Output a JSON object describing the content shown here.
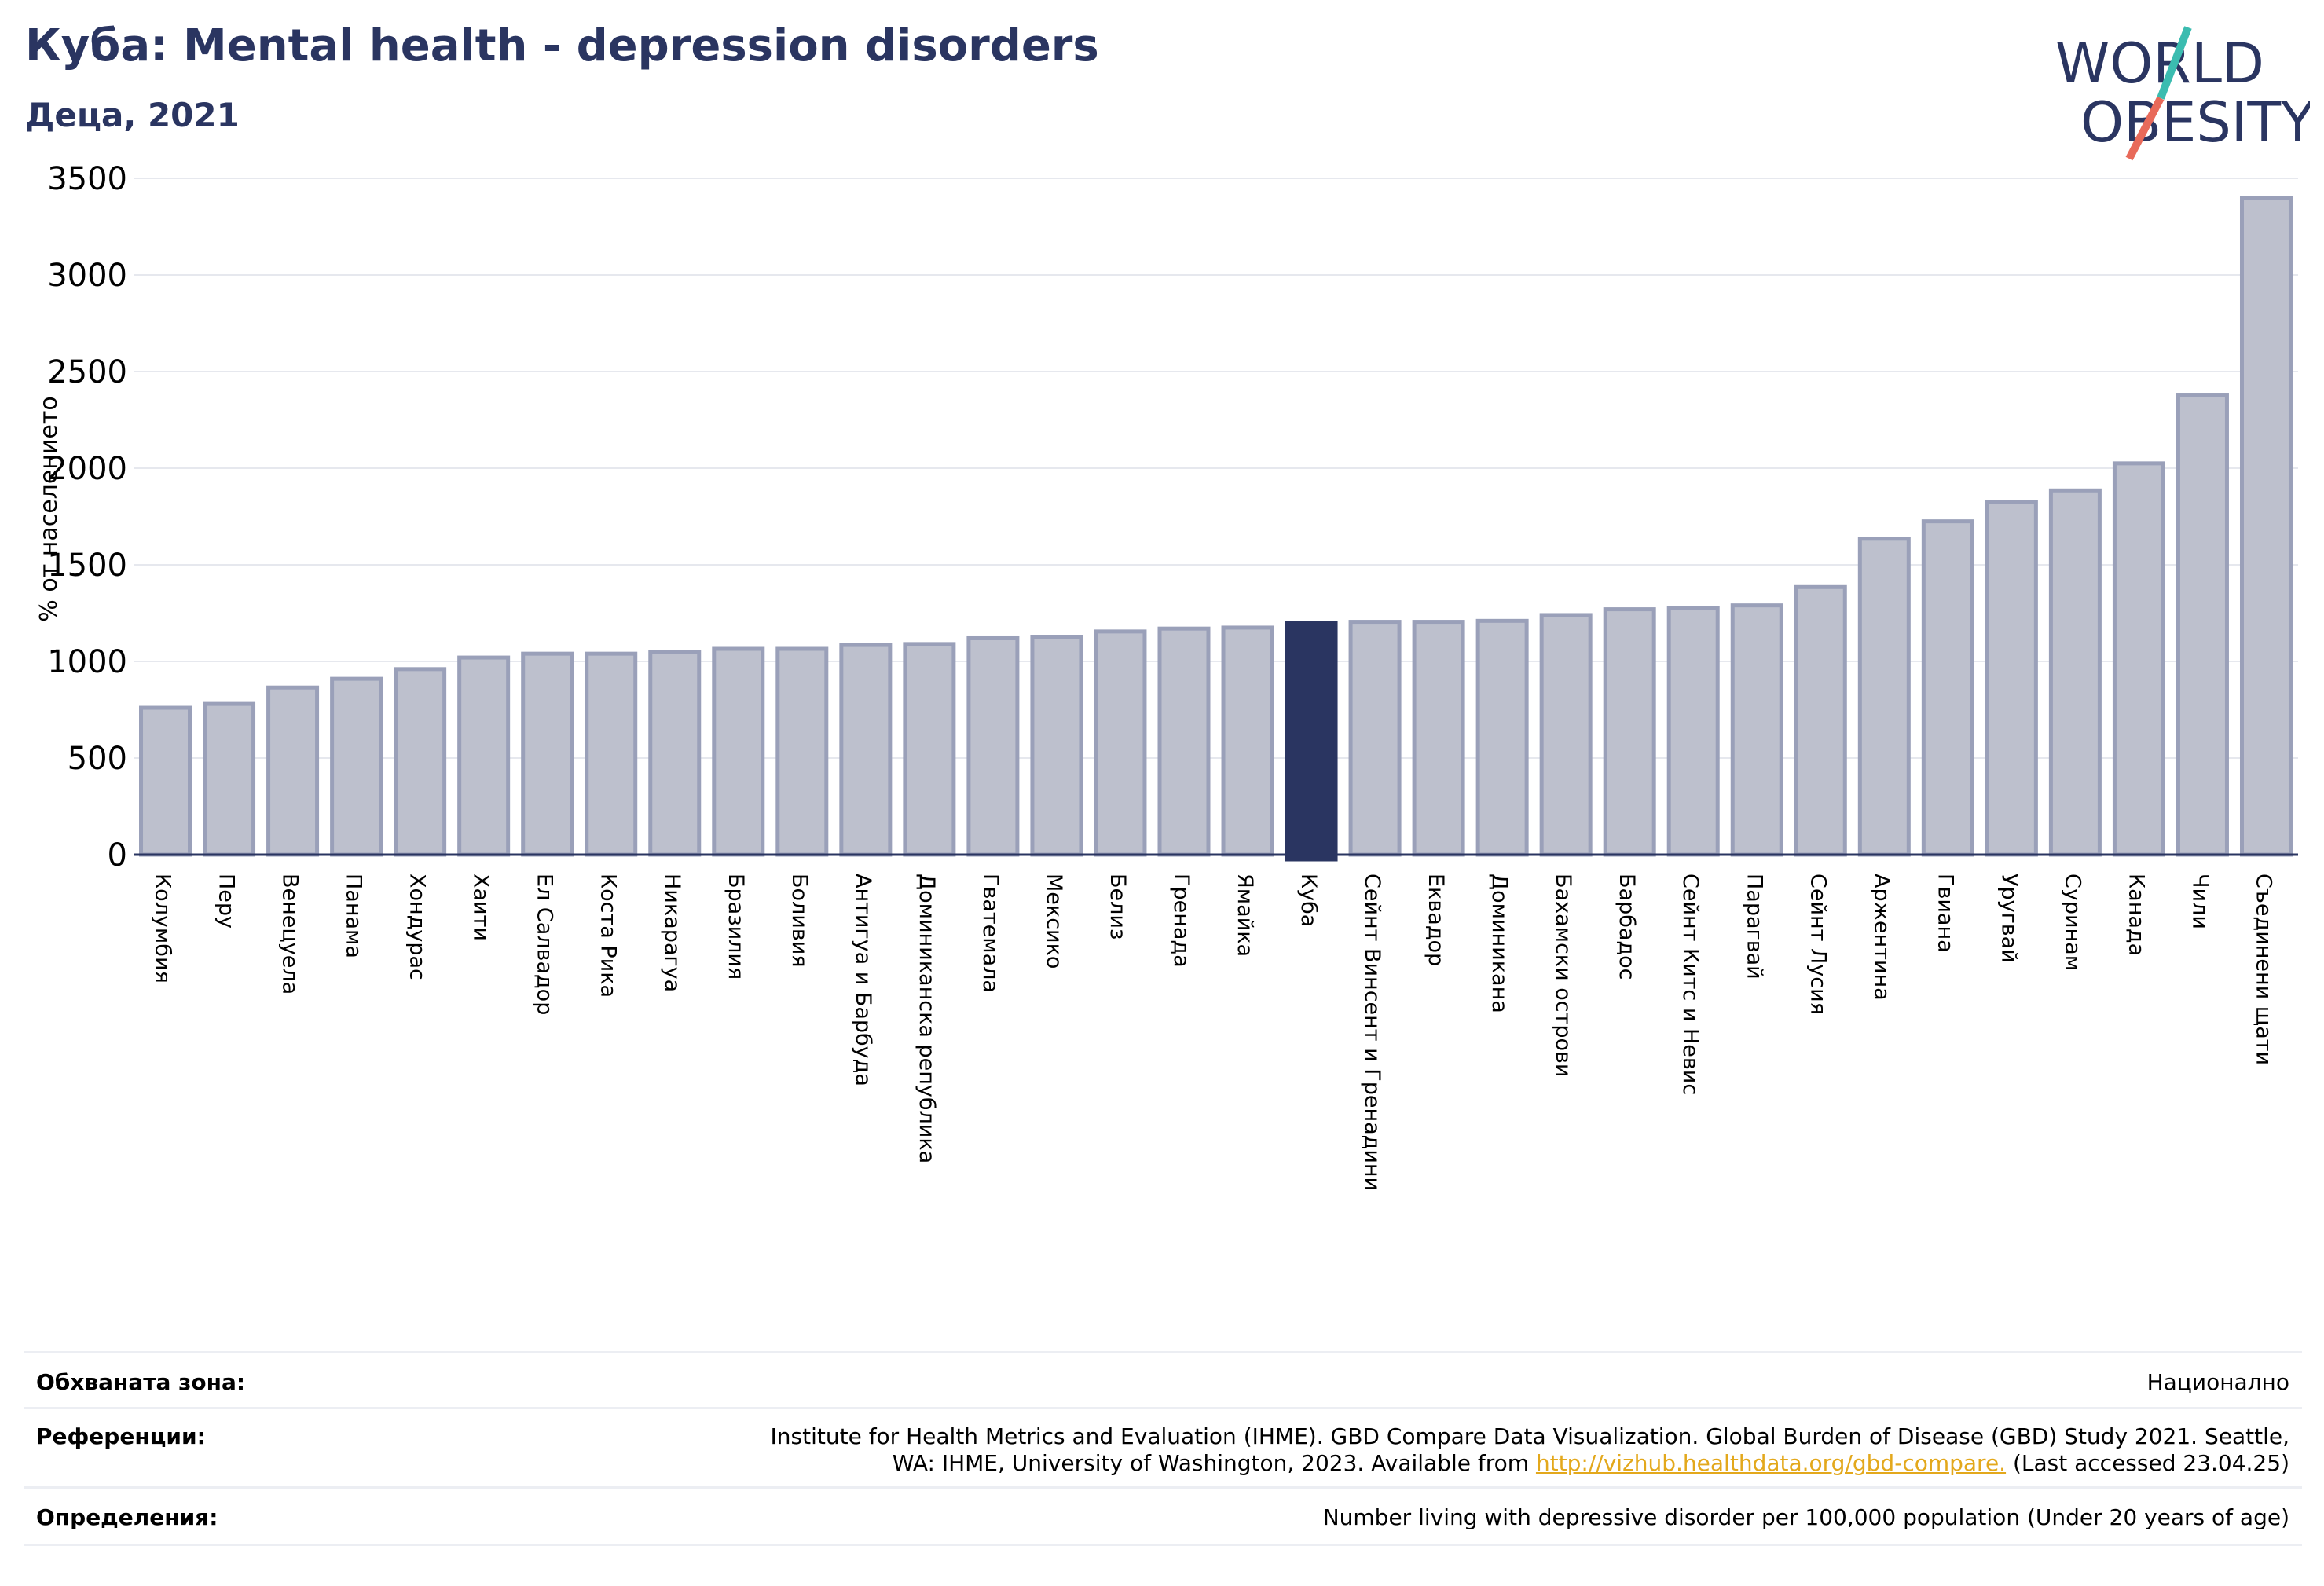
{
  "header": {
    "title": "Куба: Mental health - depression disorders",
    "subtitle": "Деца, 2021"
  },
  "logo": {
    "line1": "WORLD",
    "line2": "OBESITY",
    "text_color": "#2a3561",
    "slash_top_color": "#3bbcb0",
    "slash_bottom_color": "#e86a5a"
  },
  "colors": {
    "bar": "#bdc0cd",
    "bar_border": "#9aa0b9",
    "highlight": "#2a3561"
  },
  "chart_data": {
    "type": "bar",
    "ylabel": "% от населението",
    "ylim": [
      0,
      3500
    ],
    "yticks": [
      0,
      500,
      1000,
      1500,
      2000,
      2500,
      3000,
      3500
    ],
    "grid": true,
    "highlight": "Куба",
    "categories": [
      "Колумбия",
      "Перу",
      "Венецуела",
      "Панама",
      "Хондурас",
      "Хаити",
      "Ел Салвадор",
      "Коста Рика",
      "Никарагуа",
      "Бразилия",
      "Боливия",
      "Антигуа и Барбуда",
      "Доминиканска република",
      "Гватемала",
      "Мексико",
      "Белиз",
      "Гренада",
      "Ямайка",
      "Куба",
      "Сейнт Винсент и Гренадини",
      "Еквадор",
      "Доминикана",
      "Бахамски острови",
      "Барбадос",
      "Сейнт Китс и Невис",
      "Парагвай",
      "Сейнт Лусия",
      "Аржентина",
      "Гвиана",
      "Уругвай",
      "Суринам",
      "Канада",
      "Чили",
      "Съединени щати"
    ],
    "values": [
      760,
      780,
      865,
      910,
      960,
      1020,
      1040,
      1040,
      1050,
      1065,
      1065,
      1085,
      1090,
      1120,
      1125,
      1155,
      1170,
      1175,
      1200,
      1205,
      1205,
      1210,
      1240,
      1270,
      1275,
      1290,
      1385,
      1635,
      1725,
      1825,
      1885,
      2025,
      2380,
      3400
    ]
  },
  "info": {
    "coverage_label": "Обхваната зона:",
    "coverage_value": "Национално",
    "references_label": "Референции:",
    "references_line1": "Institute for Health Metrics and Evaluation (IHME). GBD Compare Data Visualization. Global Burden of Disease (GBD) Study 2021. Seattle,",
    "references_line2_pre": "WA: IHME, University of Washington, 2023. Available from ",
    "references_link": "http://vizhub.healthdata.org/gbd-compare.",
    "references_line2_post": " (Last accessed 23.04.25)",
    "definitions_label": "Определения:",
    "definitions_value": "Number living with depressive disorder per 100,000 population (Under 20 years of age)"
  }
}
